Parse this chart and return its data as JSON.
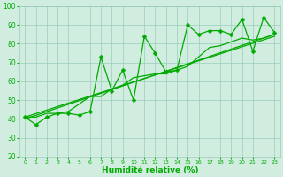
{
  "xlabel": "Humidité relative (%)",
  "xlim": [
    -0.5,
    23.5
  ],
  "ylim": [
    20,
    100
  ],
  "yticks": [
    20,
    30,
    40,
    50,
    60,
    70,
    80,
    90,
    100
  ],
  "xticks": [
    0,
    1,
    2,
    3,
    4,
    5,
    6,
    7,
    8,
    9,
    10,
    11,
    12,
    13,
    14,
    15,
    16,
    17,
    18,
    19,
    20,
    21,
    22,
    23
  ],
  "xtick_labels": [
    "0",
    "1",
    "2",
    "3",
    "4",
    "5",
    "6",
    "7",
    "8",
    "9",
    "10",
    "11",
    "12",
    "13",
    "14",
    "15",
    "16",
    "17",
    "18",
    "19",
    "20",
    "21",
    "22",
    "23"
  ],
  "line_color": "#00aa00",
  "bg_color": "#d0ede0",
  "grid_color": "#99ccbb",
  "line1_x": [
    0,
    1,
    2,
    3,
    4,
    5,
    6,
    7,
    8,
    9,
    10,
    11,
    12,
    13,
    14,
    15,
    16,
    17,
    18,
    19,
    20,
    21,
    22,
    23
  ],
  "line1_y": [
    41,
    37,
    41,
    43,
    43,
    42,
    44,
    73,
    55,
    66,
    50,
    84,
    75,
    65,
    66,
    90,
    85,
    87,
    87,
    85,
    93,
    76,
    94,
    86
  ],
  "line2_x": [
    0,
    1,
    2,
    3,
    4,
    5,
    6,
    7,
    8,
    9,
    10,
    11,
    12,
    13,
    14,
    15,
    16,
    17,
    18,
    19,
    20,
    21,
    22,
    23
  ],
  "line2_y": [
    41,
    41,
    43,
    43,
    44,
    48,
    52,
    52,
    56,
    58,
    62,
    63,
    64,
    64,
    66,
    68,
    73,
    78,
    79,
    81,
    83,
    82,
    83,
    85
  ],
  "trend_x": [
    0,
    23
  ],
  "trend_y": [
    40,
    85
  ],
  "trend2_x": [
    0,
    23
  ],
  "trend2_y": [
    41,
    84
  ],
  "linewidth": 0.9,
  "markersize": 2.5
}
